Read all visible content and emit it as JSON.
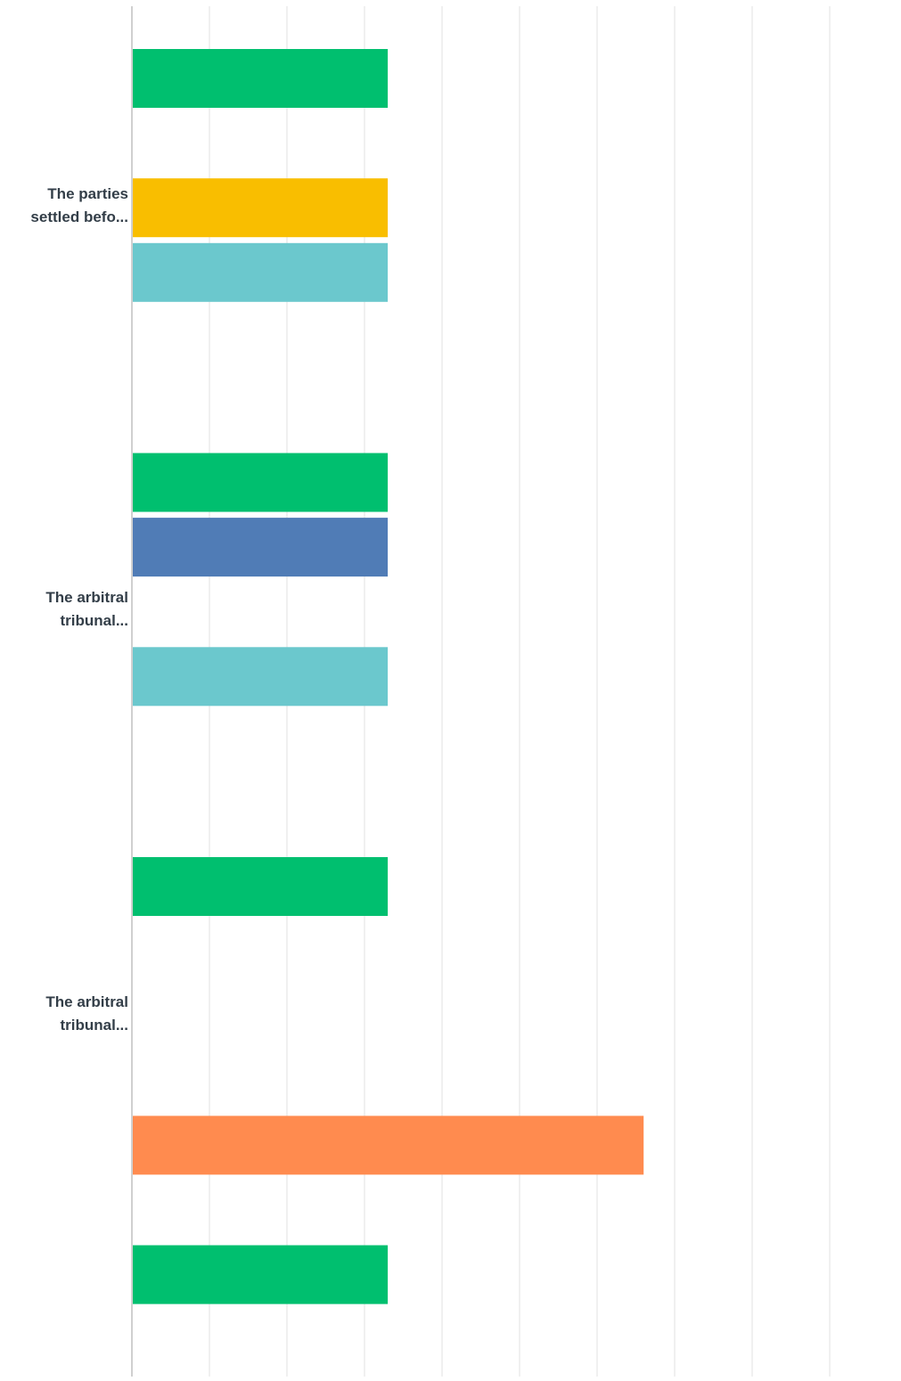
{
  "chart_data": {
    "type": "bar",
    "orientation": "horizontal",
    "grid": true,
    "xlim": [
      0,
      1
    ],
    "categories": [
      {
        "label": "The parties settled befo...",
        "lines": [
          "The parties",
          "settled befo..."
        ]
      },
      {
        "label": "The arbitral tribunal...",
        "lines": [
          "The arbitral",
          "tribunal..."
        ]
      },
      {
        "label": "The arbitral tribunal...",
        "lines": [
          "The arbitral",
          "tribunal..."
        ]
      }
    ],
    "bars": [
      {
        "category": 0,
        "slot": 0,
        "value": 0.33,
        "color": "#00bf6f"
      },
      {
        "category": 0,
        "slot": 2,
        "value": 0.33,
        "color": "#f9be00"
      },
      {
        "category": 0,
        "slot": 3,
        "value": 0.33,
        "color": "#6bc8cd"
      },
      {
        "category": 1,
        "slot": 0,
        "value": 0.33,
        "color": "#00bf6f"
      },
      {
        "category": 1,
        "slot": 1,
        "value": 0.33,
        "color": "#507cb6"
      },
      {
        "category": 1,
        "slot": 3,
        "value": 0.33,
        "color": "#6bc8cd"
      },
      {
        "category": 2,
        "slot": 0,
        "value": 0.33,
        "color": "#00bf6f"
      },
      {
        "category": 2,
        "slot": 4,
        "value": 0.66,
        "color": "#ff8b4f"
      },
      {
        "category": 2,
        "slot": 6,
        "value": 0.33,
        "color": "#00bf6f"
      }
    ],
    "colors": {
      "grid": "#ececec",
      "axis": "#d0d0d0",
      "label": "#333e48"
    }
  }
}
